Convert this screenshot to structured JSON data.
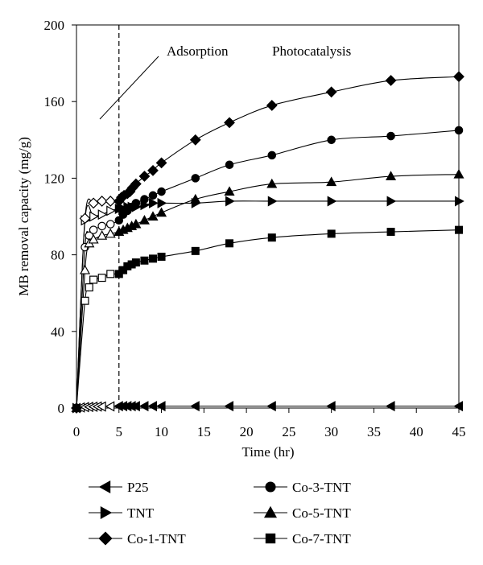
{
  "chart_data": {
    "type": "scatter",
    "xlabel": "Time (hr)",
    "ylabel": "MB removal capacity (mg/g)",
    "xlim": [
      0,
      45
    ],
    "ylim": [
      0,
      200
    ],
    "xticks": [
      0,
      5,
      10,
      15,
      20,
      25,
      30,
      35,
      40,
      45
    ],
    "yticks": [
      0,
      40,
      80,
      120,
      160,
      200
    ],
    "grid": false,
    "legend_placement": "bottom",
    "phase_divider_x": 5,
    "annotations": [
      "Adsorption",
      "Photocatalysis"
    ],
    "series": [
      {
        "name": "P25",
        "marker": "triangle-left",
        "x": [
          0,
          0.5,
          1,
          1.5,
          2,
          2.5,
          3,
          4,
          5,
          5.5,
          6,
          6.5,
          7,
          8,
          9,
          10,
          14,
          18,
          23,
          30,
          37,
          45
        ],
        "y": [
          0,
          0.3,
          0.5,
          0.6,
          0.7,
          0.8,
          0.8,
          0.9,
          1,
          1,
          1,
          1,
          1,
          1,
          1,
          1,
          1,
          1,
          1,
          1,
          1,
          1
        ]
      },
      {
        "name": "TNT",
        "marker": "triangle-right",
        "x": [
          0,
          1,
          2,
          3,
          4,
          5,
          5.5,
          6,
          6.5,
          7,
          8,
          9,
          10,
          14,
          18,
          23,
          30,
          37,
          45
        ],
        "y": [
          0,
          98,
          100,
          101,
          103,
          104,
          104,
          105,
          105,
          105,
          106,
          107,
          107,
          107,
          108,
          108,
          108,
          108,
          108
        ]
      },
      {
        "name": "Co-1-TNT",
        "marker": "diamond",
        "x": [
          0,
          1,
          2,
          3,
          4,
          5,
          5.3,
          5.6,
          6,
          6.3,
          6.6,
          7,
          8,
          9,
          10,
          14,
          18,
          23,
          30,
          37,
          45
        ],
        "y": [
          0,
          99,
          107,
          108,
          108,
          108,
          110,
          111,
          112,
          113,
          115,
          117,
          121,
          124,
          128,
          140,
          149,
          158,
          165,
          171,
          173
        ]
      },
      {
        "name": "Co-3-TNT",
        "marker": "circle",
        "x": [
          0,
          1,
          1.5,
          2,
          3,
          4,
          5,
          5.5,
          6,
          6.5,
          7,
          8,
          9,
          10,
          14,
          18,
          23,
          30,
          37,
          45
        ],
        "y": [
          0,
          84,
          90,
          93,
          95,
          96,
          98,
          101,
          103,
          105,
          107,
          109,
          111,
          113,
          120,
          127,
          132,
          140,
          142,
          145
        ]
      },
      {
        "name": "Co-5-TNT",
        "marker": "triangle-up",
        "x": [
          0,
          1,
          1.5,
          2,
          3,
          4,
          5,
          5.5,
          6,
          6.5,
          7,
          8,
          9,
          10,
          14,
          18,
          23,
          30,
          37,
          45
        ],
        "y": [
          0,
          72,
          86,
          88,
          90,
          91,
          92,
          93,
          94,
          95,
          96,
          98,
          100,
          102,
          109,
          113,
          117,
          118,
          121,
          122
        ]
      },
      {
        "name": "Co-7-TNT",
        "marker": "square",
        "x": [
          0,
          1,
          1.5,
          2,
          3,
          4,
          5,
          5.5,
          6,
          6.5,
          7,
          8,
          9,
          10,
          14,
          18,
          23,
          30,
          37,
          45
        ],
        "y": [
          0,
          56,
          63,
          67,
          68,
          70,
          70,
          72,
          74,
          75,
          76,
          77,
          78,
          79,
          82,
          86,
          89,
          91,
          92,
          93
        ]
      }
    ]
  }
}
